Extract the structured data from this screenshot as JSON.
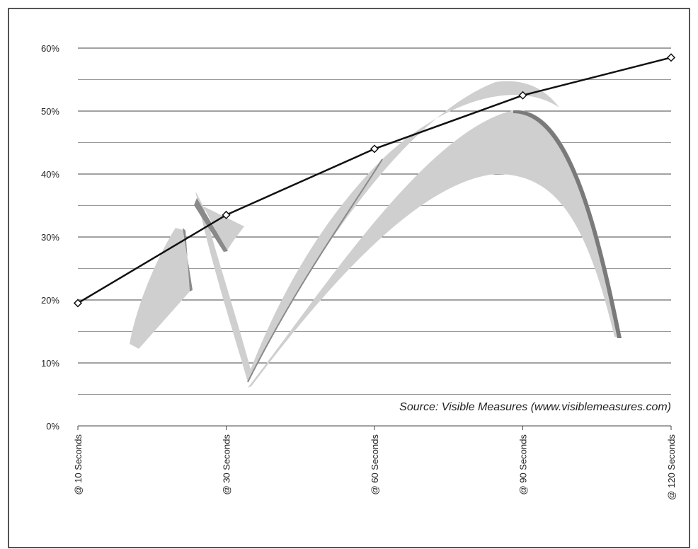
{
  "chart_data": {
    "type": "line",
    "annotation": "Source: Visible Measures (www.visiblemeasures.com)",
    "categories": [
      "@ 10 Seconds",
      "@ 30 Seconds",
      "@ 60 Seconds",
      "@ 90 Seconds",
      "@ 120 Seconds"
    ],
    "series": [
      {
        "values": [
          19.5,
          33.5,
          44,
          52.5,
          58.5
        ],
        "color": "#111111"
      }
    ],
    "ylim": [
      0,
      60
    ],
    "yticks": [
      {
        "value": 0,
        "label": "0%"
      },
      {
        "value": 10,
        "label": "10%"
      },
      {
        "value": 20,
        "label": "20%"
      },
      {
        "value": 30,
        "label": "30%"
      },
      {
        "value": 40,
        "label": "40%"
      },
      {
        "value": 50,
        "label": "50%"
      },
      {
        "value": 60,
        "label": "60%"
      }
    ],
    "minor_yticks": [
      5,
      15,
      25,
      35,
      45,
      55
    ],
    "grid": true
  }
}
